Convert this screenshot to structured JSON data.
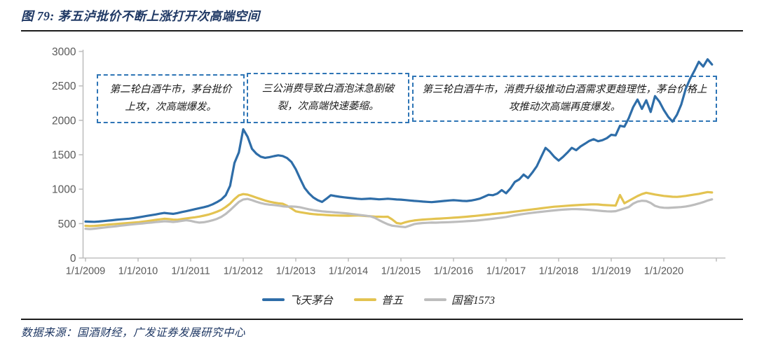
{
  "title": {
    "label": "图 79: 茅五泸批价不断上涨打开次高端空间"
  },
  "source": {
    "label": "数据来源：国酒财经，广发证券发展研究中心"
  },
  "annotations": [
    {
      "text": "第二轮白酒牛市，茅台批价上攻，次高端爆发。"
    },
    {
      "text": "三公消费导致白酒泡沫急剧破裂，次高端快速萎缩。"
    },
    {
      "text": "第三轮白酒牛市，消费升级推动白酒需求更趋理性，茅台价格上攻推动次高端再度爆发。"
    }
  ],
  "colors": {
    "title_navy": "#1F3864",
    "annotation_border_blue": "#2E75B6",
    "axis_line": "#BFBFBF",
    "tick_label": "#595959",
    "rule": "#1c1c1c"
  },
  "chart_data": {
    "type": "line",
    "title": "",
    "xlabel": "",
    "ylabel": "",
    "ylim": [
      0,
      3000
    ],
    "y_ticks": [
      0,
      500,
      1000,
      1500,
      2000,
      2500,
      3000
    ],
    "grid": false,
    "legend_position": "bottom",
    "x_frequency": "monthly",
    "x_range": [
      "1/1/2009",
      "12/1/2020"
    ],
    "x_tick_labels": [
      "1/1/2009",
      "1/1/2010",
      "1/1/2011",
      "1/1/2012",
      "1/1/2013",
      "1/1/2014",
      "1/1/2015",
      "1/1/2016",
      "1/1/2017",
      "1/1/2018",
      "1/1/2019",
      "1/1/2020"
    ],
    "series": [
      {
        "name": "飞天茅台",
        "color": "#2E6DA8",
        "values": [
          530,
          528,
          526,
          530,
          536,
          542,
          548,
          555,
          561,
          566,
          572,
          580,
          590,
          601,
          612,
          622,
          633,
          645,
          655,
          648,
          642,
          653,
          668,
          680,
          695,
          710,
          724,
          738,
          755,
          780,
          812,
          850,
          912,
          1050,
          1380,
          1535,
          1870,
          1760,
          1585,
          1515,
          1472,
          1455,
          1465,
          1480,
          1492,
          1482,
          1452,
          1395,
          1290,
          1150,
          1020,
          940,
          880,
          840,
          815,
          862,
          912,
          900,
          890,
          882,
          875,
          868,
          861,
          856,
          859,
          863,
          858,
          852,
          856,
          861,
          856,
          850,
          848,
          842,
          836,
          830,
          826,
          820,
          816,
          812,
          818,
          824,
          830,
          836,
          840,
          836,
          830,
          828,
          835,
          847,
          862,
          890,
          918,
          912,
          936,
          986,
          941,
          1012,
          1105,
          1142,
          1212,
          1162,
          1242,
          1332,
          1466,
          1600,
          1545,
          1470,
          1416,
          1470,
          1532,
          1601,
          1566,
          1621,
          1660,
          1701,
          1726,
          1696,
          1712,
          1741,
          1790,
          1782,
          1921,
          1908,
          2031,
          2192,
          2301,
          2166,
          2291,
          2121,
          2351,
          2271,
          2151,
          2051,
          1981,
          2081,
          2231,
          2456,
          2601,
          2721,
          2851,
          2781,
          2886,
          2811
        ]
      },
      {
        "name": "普五",
        "color": "#E3C351",
        "values": [
          468,
          464,
          467,
          472,
          478,
          484,
          490,
          495,
          500,
          505,
          510,
          515,
          520,
          528,
          536,
          545,
          554,
          562,
          570,
          565,
          558,
          556,
          566,
          576,
          584,
          592,
          602,
          615,
          630,
          650,
          672,
          700,
          740,
          790,
          855,
          910,
          928,
          920,
          900,
          878,
          856,
          835,
          818,
          805,
          795,
          788,
          760,
          720,
          678,
          665,
          655,
          645,
          638,
          632,
          628,
          624,
          620,
          618,
          616,
          615,
          614,
          616,
          618,
          615,
          610,
          606,
          602,
          600,
          598,
          600,
          560,
          510,
          498,
          520,
          535,
          545,
          552,
          558,
          562,
          566,
          570,
          574,
          578,
          582,
          586,
          590,
          595,
          600,
          606,
          612,
          618,
          625,
          632,
          640,
          646,
          652,
          658,
          666,
          674,
          682,
          690,
          698,
          706,
          714,
          722,
          730,
          738,
          745,
          750,
          755,
          760,
          764,
          768,
          772,
          775,
          778,
          780,
          778,
          772,
          768,
          765,
          762,
          915,
          795,
          830,
          865,
          900,
          928,
          948,
          935,
          922,
          912,
          902,
          896,
          890,
          888,
          894,
          902,
          912,
          922,
          932,
          945,
          958,
          952
        ]
      },
      {
        "name": "国窖1573",
        "color": "#BDBDBD",
        "values": [
          425,
          420,
          426,
          433,
          440,
          448,
          455,
          462,
          470,
          477,
          484,
          490,
          496,
          502,
          509,
          515,
          522,
          528,
          534,
          530,
          524,
          530,
          540,
          548,
          540,
          525,
          515,
          520,
          532,
          548,
          568,
          598,
          640,
          695,
          755,
          815,
          850,
          858,
          840,
          818,
          798,
          784,
          775,
          770,
          762,
          752,
          746,
          748,
          745,
          736,
          722,
          708,
          696,
          686,
          678,
          672,
          668,
          662,
          658,
          652,
          646,
          638,
          630,
          622,
          614,
          606,
          585,
          550,
          520,
          490,
          470,
          462,
          455,
          448,
          470,
          492,
          502,
          508,
          512,
          515,
          514,
          517,
          519,
          521,
          524,
          527,
          531,
          535,
          539,
          543,
          549,
          556,
          563,
          571,
          579,
          587,
          596,
          608,
          620,
          631,
          640,
          649,
          657,
          664,
          671,
          678,
          685,
          692,
          698,
          703,
          707,
          710,
          710,
          708,
          705,
          700,
          695,
          688,
          682,
          678,
          676,
          680,
          700,
          720,
          740,
          790,
          820,
          832,
          828,
          800,
          758,
          738,
          730,
          728,
          732,
          736,
          740,
          748,
          760,
          775,
          792,
          812,
          835,
          852
        ]
      }
    ]
  }
}
